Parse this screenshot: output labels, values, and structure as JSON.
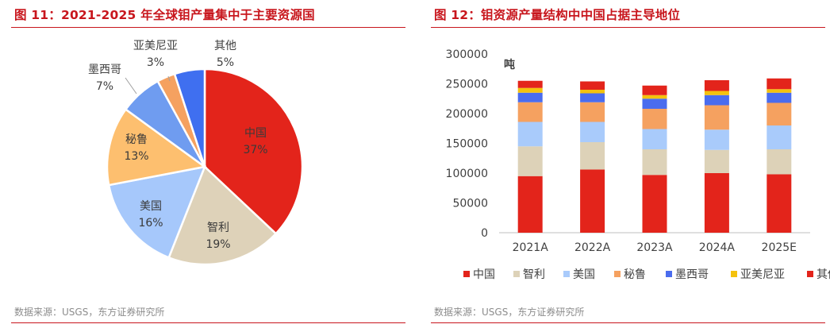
{
  "left_panel": {
    "title": "图 11：2021-2025 年全球钼产量集中于主要资源国",
    "source": "数据来源：USGS，东方证券研究所"
  },
  "right_panel": {
    "title": "图 12：钼资源产量结构中中国占据主导地位",
    "source": "数据来源：USGS，东方证券研究所"
  },
  "colors": {
    "title_red": "#c8161d",
    "中国": "#e3241b",
    "智利": "#ded2b9",
    "美国": "#a6c8fb",
    "秘鲁": "#f5a160",
    "墨西哥": "#4a6cee",
    "亚美尼亚": "#f4c20d",
    "其他": "#e3241b"
  },
  "chart_data": [
    {
      "type": "pie",
      "slices": [
        {
          "name": "中国",
          "pct_label": "37%",
          "value": 37,
          "color": "#e3241b"
        },
        {
          "name": "智利",
          "pct_label": "19%",
          "value": 19,
          "color": "#ded2b9"
        },
        {
          "name": "美国",
          "pct_label": "16%",
          "value": 16,
          "color": "#a6c8fb"
        },
        {
          "name": "秘鲁",
          "pct_label": "13%",
          "value": 13,
          "color": "#fdbf6f"
        },
        {
          "name": "墨西哥",
          "pct_label": "7%",
          "value": 7,
          "color": "#6f9cf0"
        },
        {
          "name": "亚美尼亚",
          "pct_label": "3%",
          "value": 3,
          "color": "#f5a160"
        },
        {
          "name": "其他",
          "pct_label": "5%",
          "value": 5,
          "color": "#3f6ff0"
        }
      ]
    },
    {
      "type": "bar",
      "stacked": true,
      "unit_label": "吨",
      "categories": [
        "2021A",
        "2022A",
        "2023A",
        "2024A",
        "2025E"
      ],
      "ylim": [
        0,
        300000
      ],
      "yticks": [
        "0",
        "50000",
        "100000",
        "150000",
        "200000",
        "250000",
        "300000"
      ],
      "legend_position": "bottom",
      "series": [
        {
          "name": "中国",
          "color": "#e3241b",
          "values": [
            95000,
            106000,
            97000,
            100000,
            98000
          ]
        },
        {
          "name": "智利",
          "color": "#ddd2b8",
          "values": [
            50000,
            46000,
            43000,
            39000,
            42000
          ]
        },
        {
          "name": "美国",
          "color": "#a9cbfb",
          "values": [
            41000,
            34000,
            34000,
            34000,
            40000
          ]
        },
        {
          "name": "秘鲁",
          "color": "#f5a160",
          "values": [
            33000,
            33000,
            34000,
            41000,
            38000
          ]
        },
        {
          "name": "墨西哥",
          "color": "#4a6cee",
          "values": [
            16000,
            15000,
            17000,
            17000,
            17000
          ]
        },
        {
          "name": "亚美尼亚",
          "color": "#f4c20d",
          "values": [
            8000,
            6000,
            6000,
            7000,
            6000
          ]
        },
        {
          "name": "其他",
          "color": "#e3241b",
          "values": [
            12000,
            14000,
            16000,
            18000,
            18000
          ]
        }
      ]
    }
  ]
}
